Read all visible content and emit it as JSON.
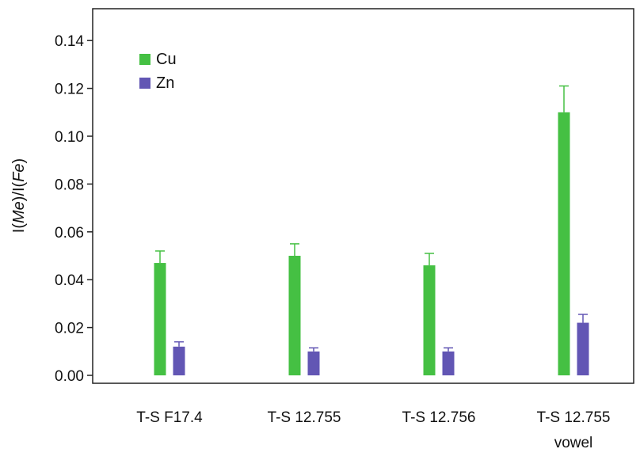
{
  "chart_data": {
    "type": "bar",
    "title": "",
    "xlabel": "",
    "ylabel": {
      "prefix": "I(",
      "numerator": "Me",
      "middle": ")/I(",
      "denominator": "Fe",
      "suffix": ")"
    },
    "ylim": [
      0,
      0.15
    ],
    "yticks": [
      "0.00",
      "0.02",
      "0.04",
      "0.06",
      "0.08",
      "0.10",
      "0.12",
      "0.14"
    ],
    "ytick_values": [
      0,
      0.02,
      0.04,
      0.06,
      0.08,
      0.1,
      0.12,
      0.14
    ],
    "categories": [
      {
        "line1": "T-S F17.4",
        "line2": ""
      },
      {
        "line1": "T-S 12.755",
        "line2": ""
      },
      {
        "line1": "T-S 12.756",
        "line2": ""
      },
      {
        "line1": "T-S 12.755",
        "line2": "vowel"
      }
    ],
    "series": [
      {
        "name": "Cu",
        "color": "#45c043",
        "values": [
          0.047,
          0.05,
          0.046,
          0.11
        ],
        "errors": [
          0.005,
          0.005,
          0.005,
          0.011
        ]
      },
      {
        "name": "Zn",
        "color": "#6256b4",
        "values": [
          0.012,
          0.01,
          0.01,
          0.022
        ],
        "errors": [
          0.002,
          0.0015,
          0.0015,
          0.0035
        ]
      }
    ],
    "legend": {
      "position": "top-left"
    },
    "grid": false
  }
}
